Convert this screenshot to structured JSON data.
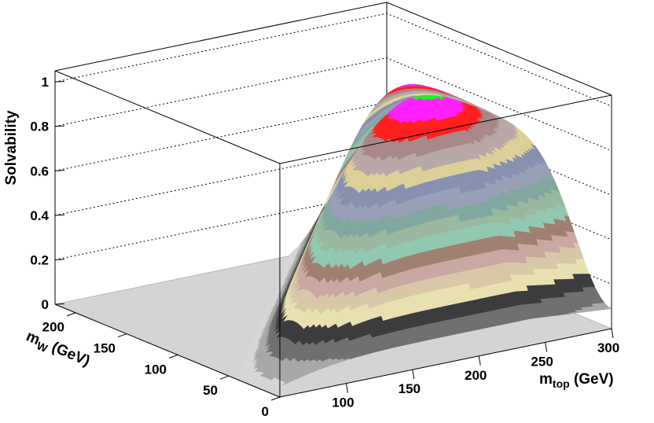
{
  "chart_data": {
    "type": "surface3d",
    "zlabel": "Solvability",
    "xlabel_main": "m",
    "xlabel_sub": "top",
    "xlabel_unit": " (GeV)",
    "ylabel_main": "m",
    "ylabel_sub": "W",
    "ylabel_unit": " (GeV)",
    "xlim": [
      50,
      300
    ],
    "ylim": [
      0,
      220
    ],
    "zlim": [
      0,
      1.05
    ],
    "x_ticks": [
      "100",
      "150",
      "200",
      "250",
      "300"
    ],
    "y_ticks": [
      "0",
      "50",
      "100",
      "150",
      "200"
    ],
    "z_ticks": [
      "0",
      "0.2",
      "0.4",
      "0.6",
      "0.8",
      "1"
    ],
    "grid": true,
    "contour_levels": 19,
    "contour_colors": [
      "#d6d6d6",
      "#a8a8a8",
      "#707070",
      "#3c3c3c",
      "#e8e0b0",
      "#d8c8a8",
      "#c8a8a0",
      "#a08070",
      "#90c8b0",
      "#9ab8a0",
      "#80a8a0",
      "#98a0b8",
      "#8890b0",
      "#dcd098",
      "#b8a8a8",
      "#a88888",
      "#ff2020",
      "#ff20ff",
      "#20f020",
      "#202020"
    ],
    "peak_value": 1.0
  }
}
